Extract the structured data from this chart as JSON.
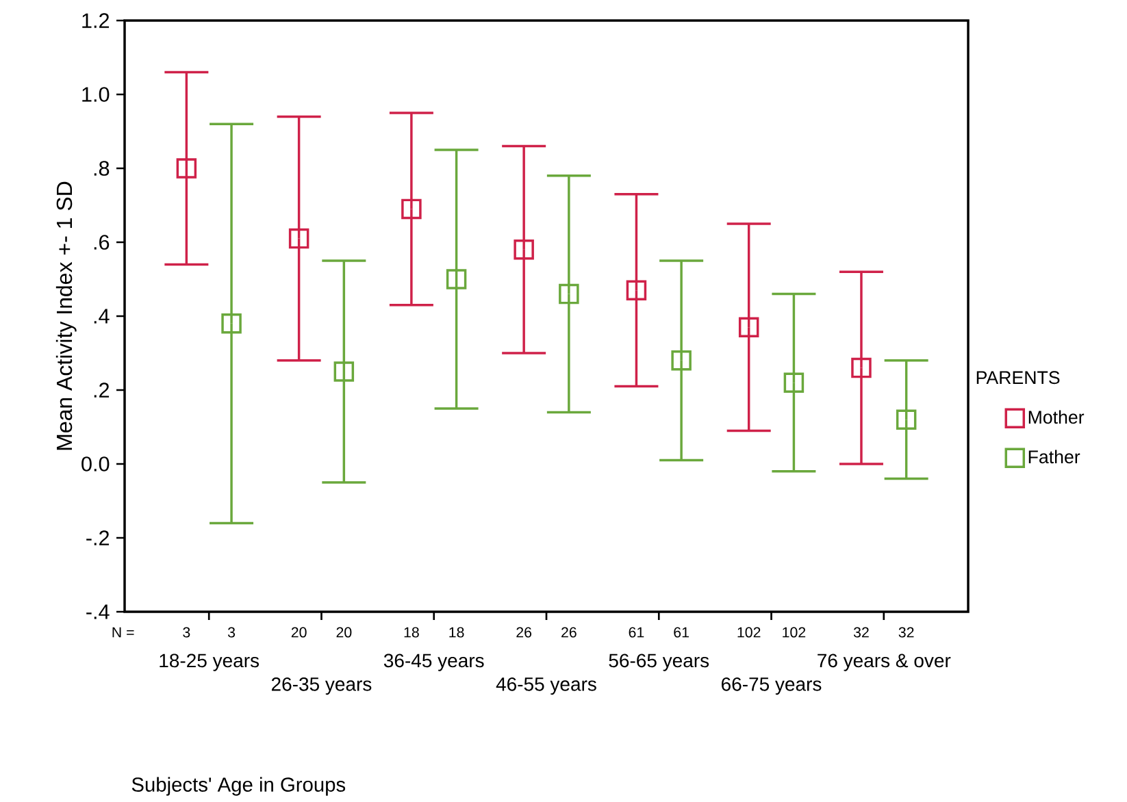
{
  "chart_data": {
    "type": "scatter",
    "xlabel": "Subjects' Age in Groups",
    "ylabel": "Mean  Activity Index +- 1 SD",
    "legend_title": "PARENTS",
    "categories": [
      "18-25 years",
      "26-35 years",
      "36-45 years",
      "46-55 years",
      "56-65 years",
      "66-75 years",
      "76 years & over"
    ],
    "series": [
      {
        "name": "Mother",
        "color": "#cf2149",
        "values": [
          0.8,
          0.61,
          0.69,
          0.58,
          0.47,
          0.37,
          0.26
        ],
        "errors": [
          0.26,
          0.33,
          0.26,
          0.28,
          0.26,
          0.28,
          0.26
        ]
      },
      {
        "name": "Father",
        "color": "#6aa83c",
        "values": [
          0.38,
          0.25,
          0.5,
          0.46,
          0.28,
          0.22,
          0.12
        ],
        "errors": [
          0.54,
          0.3,
          0.35,
          0.32,
          0.27,
          0.24,
          0.16
        ]
      }
    ],
    "ylim": [
      -0.4,
      1.2
    ],
    "yticks": [
      {
        "value": -0.4,
        "label": "-.4"
      },
      {
        "value": -0.2,
        "label": "-.2"
      },
      {
        "value": 0,
        "label": "0.0"
      },
      {
        "value": 0.2,
        "label": ".2"
      },
      {
        "value": 0.4,
        "label": ".4"
      },
      {
        "value": 0.6,
        "label": ".6"
      },
      {
        "value": 0.8,
        "label": ".8"
      },
      {
        "value": 1.0,
        "label": "1.0"
      },
      1.2
    ],
    "annotations": [
      "N =",
      "3",
      "3",
      "20",
      "20",
      "18",
      "18",
      "26",
      "26",
      "61",
      "61",
      "102",
      "102",
      "32",
      "32"
    ],
    "marker": "square",
    "legend": "right",
    "grid": false
  }
}
